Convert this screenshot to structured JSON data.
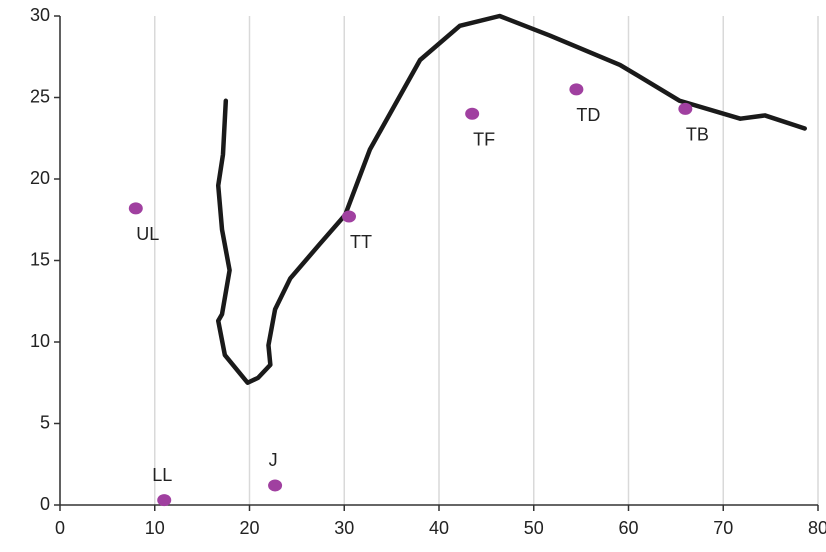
{
  "chart_data": {
    "type": "scatter",
    "xlim": [
      0,
      80
    ],
    "xticks": [
      0,
      10,
      20,
      30,
      40,
      50,
      60,
      70,
      80
    ],
    "ylim": [
      0,
      30
    ],
    "yticks": [
      0,
      5,
      10,
      15,
      20,
      25,
      30
    ],
    "xgrid": true,
    "ygrid": false,
    "series": [
      {
        "type": "line",
        "color": "#1a1a1a",
        "x": [
          17.5,
          17.2,
          16.7,
          17.1,
          17.9,
          17.1,
          16.7,
          17.4,
          19.8,
          20.9,
          22.2,
          22.0,
          22.7,
          24.3,
          27.4,
          30.1,
          32.7,
          38.0,
          42.2,
          46.4,
          51.7,
          59.1,
          65.4,
          71.8,
          74.4,
          78.6
        ],
        "y": [
          24.8,
          21.5,
          19.6,
          16.9,
          14.4,
          11.7,
          11.3,
          9.2,
          7.5,
          7.8,
          8.6,
          9.8,
          12.0,
          13.9,
          16.0,
          17.8,
          21.8,
          27.3,
          29.4,
          30.0,
          28.8,
          27.0,
          24.8,
          23.7,
          23.9,
          23.1
        ]
      },
      {
        "type": "scatter",
        "color": "#a040a0",
        "labels": [
          "UL",
          "LL",
          "J",
          "TT",
          "TF",
          "TD",
          "TB"
        ],
        "x": [
          8,
          11,
          22.7,
          30.5,
          43.5,
          54.5,
          66
        ],
        "y": [
          18.2,
          0.3,
          1.2,
          17.7,
          24,
          25.5,
          24.3
        ]
      }
    ]
  }
}
